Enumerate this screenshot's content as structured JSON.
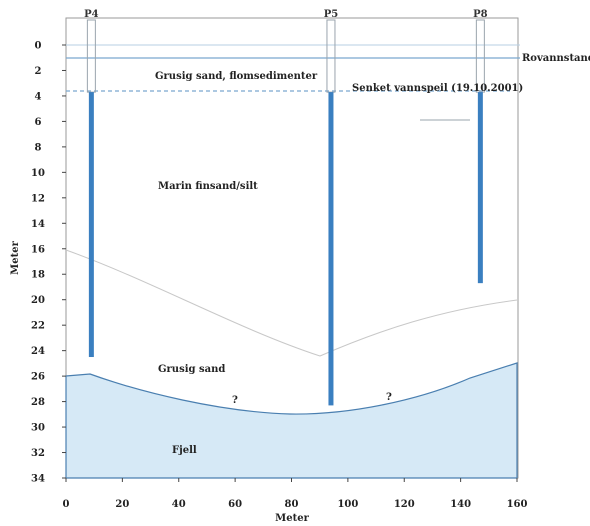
{
  "axes": {
    "xlabel": "Meter",
    "ylabel": "Meter",
    "x_ticks": [
      "0",
      "20",
      "40",
      "60",
      "80",
      "100",
      "120",
      "140",
      "160"
    ],
    "y_ticks": [
      "0",
      "2",
      "4",
      "6",
      "8",
      "10",
      "12",
      "14",
      "16",
      "18",
      "20",
      "22",
      "24",
      "26",
      "28",
      "30",
      "32",
      "34"
    ],
    "xlim": [
      0,
      160
    ],
    "ylim": [
      0,
      34
    ]
  },
  "wells": [
    {
      "label": "P4",
      "x": 9,
      "bottom_depth": 24.5
    },
    {
      "label": "P5",
      "x": 94,
      "bottom_depth": 28.3
    },
    {
      "label": "P8",
      "x": 147,
      "bottom_depth": 18.7
    }
  ],
  "layers": {
    "top_layer": "Grusig sand, flomsedimenter",
    "marine": "Marin finsand/silt",
    "lower_sand": "Grusig sand",
    "bedrock": "Fjell"
  },
  "reference_lines": {
    "ground_surface": "Rovannstand",
    "water_table": "Senket vannspeil (19.10.2001)"
  },
  "question_marks": [
    "?",
    "?"
  ],
  "colors": {
    "well": "#3a7fc0",
    "bedrock_fill": "#d6e9f6",
    "lines": "#7aa8cf"
  }
}
